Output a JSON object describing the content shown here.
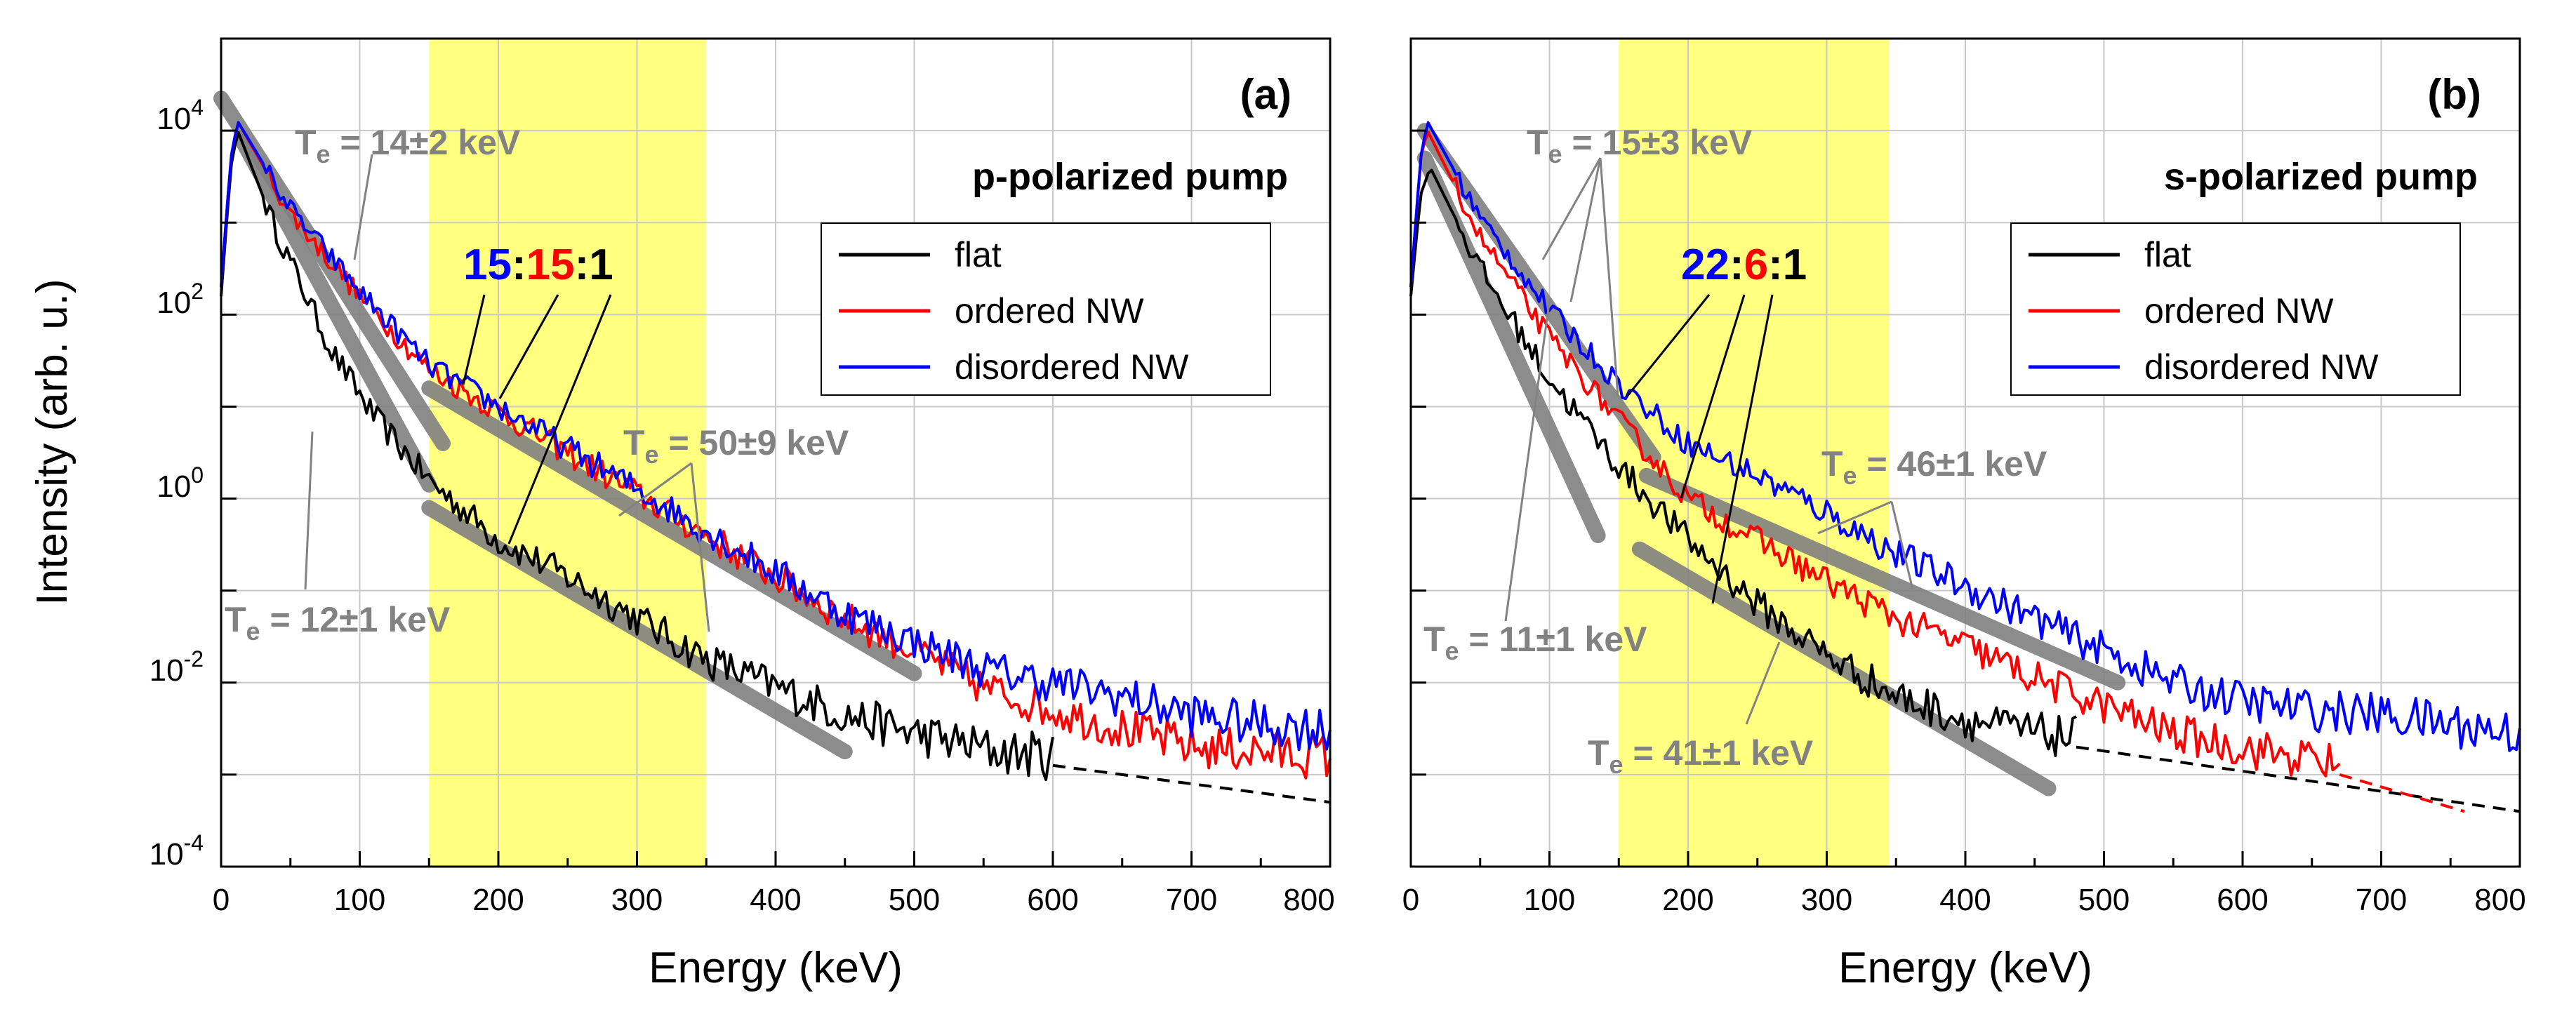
{
  "colors": {
    "flat": "#000000",
    "ordered": "#ff0000",
    "disordered": "#0000ff",
    "fit": "#808080",
    "annotation": "#828282",
    "highlight": "#ffff80"
  },
  "chart_data": [
    {
      "type": "line",
      "panel_label": "(a)",
      "title": "p-polarized pump",
      "xlabel": "Energy (keV)",
      "ylabel": "Intensity (arb. u.)",
      "xlim": [
        0,
        800
      ],
      "ylim_log10": [
        -4,
        5
      ],
      "y_scale": "log",
      "grid": true,
      "x_ticks": [
        "0",
        "100",
        "200",
        "300",
        "400",
        "500",
        "600",
        "700",
        "800"
      ],
      "y_ticks": [
        {
          "base": "10",
          "exp": "-4",
          "log": -4
        },
        {
          "base": "10",
          "exp": "-2",
          "log": -2
        },
        {
          "base": "10",
          "exp": "0",
          "log": 0
        },
        {
          "base": "10",
          "exp": "2",
          "log": 2
        },
        {
          "base": "10",
          "exp": "4",
          "log": 4
        }
      ],
      "highlight_band_keV": [
        150,
        350
      ],
      "legend": {
        "position": "upper-right",
        "entries": [
          "flat",
          "ordered NW",
          "disordered NW"
        ]
      },
      "ratio": {
        "blue": "15",
        "red": "15",
        "black": "1",
        "sep": ":"
      },
      "series": [
        {
          "name": "flat",
          "color": "#000000",
          "peak_keV": 12,
          "peak_log": 4.0,
          "noise": 0.12,
          "knots": [
            [
              0,
              2.2
            ],
            [
              7,
              3.6
            ],
            [
              12,
              4.0
            ],
            [
              40,
              2.9
            ],
            [
              80,
              1.6
            ],
            [
              110,
              0.9
            ],
            [
              150,
              0.2
            ],
            [
              200,
              -0.45
            ],
            [
              250,
              -0.85
            ],
            [
              300,
              -1.3
            ],
            [
              350,
              -1.75
            ],
            [
              400,
              -2.05
            ],
            [
              450,
              -2.35
            ],
            [
              500,
              -2.55
            ],
            [
              560,
              -2.75
            ],
            [
              600,
              -2.8
            ]
          ],
          "dashed_tail": [
            [
              600,
              -2.9
            ],
            [
              800,
              -3.3
            ]
          ]
        },
        {
          "name": "ordered NW",
          "color": "#ff0000",
          "peak_keV": 12,
          "peak_log": 4.1,
          "noise": 0.1,
          "knots": [
            [
              0,
              2.3
            ],
            [
              7,
              3.7
            ],
            [
              12,
              4.1
            ],
            [
              50,
              3.1
            ],
            [
              100,
              2.2
            ],
            [
              150,
              1.4
            ],
            [
              200,
              0.95
            ],
            [
              250,
              0.5
            ],
            [
              300,
              0.05
            ],
            [
              350,
              -0.4
            ],
            [
              400,
              -0.85
            ],
            [
              450,
              -1.3
            ],
            [
              500,
              -1.65
            ],
            [
              550,
              -2.05
            ],
            [
              600,
              -2.3
            ],
            [
              650,
              -2.5
            ],
            [
              700,
              -2.7
            ],
            [
              750,
              -2.75
            ],
            [
              800,
              -2.8
            ]
          ]
        },
        {
          "name": "disordered NW",
          "color": "#0000ff",
          "peak_keV": 12,
          "peak_log": 4.1,
          "noise": 0.1,
          "knots": [
            [
              0,
              2.3
            ],
            [
              7,
              3.7
            ],
            [
              12,
              4.1
            ],
            [
              50,
              3.15
            ],
            [
              100,
              2.25
            ],
            [
              150,
              1.45
            ],
            [
              200,
              1.0
            ],
            [
              250,
              0.55
            ],
            [
              300,
              0.1
            ],
            [
              350,
              -0.35
            ],
            [
              400,
              -0.8
            ],
            [
              450,
              -1.25
            ],
            [
              500,
              -1.55
            ],
            [
              550,
              -1.85
            ],
            [
              600,
              -2.0
            ],
            [
              650,
              -2.15
            ],
            [
              700,
              -2.35
            ],
            [
              750,
              -2.45
            ],
            [
              800,
              -2.5
            ]
          ]
        }
      ],
      "fits": [
        {
          "label_prefix": "T",
          "label_sub": "e",
          "label_value": " = 14±2 keV",
          "segment": [
            [
              0,
              4.35
            ],
            [
              160,
              0.6
            ]
          ]
        },
        {
          "label_prefix": "T",
          "label_sub": "e",
          "label_value": " = 12±1 keV",
          "segment": [
            [
              15,
              3.9
            ],
            [
              150,
              0.15
            ]
          ]
        },
        {
          "label_prefix": "T",
          "label_sub": "e",
          "label_value": " = 50±9 keV",
          "segment": [
            [
              150,
              1.2
            ],
            [
              500,
              -1.9
            ]
          ]
        },
        {
          "label_prefix": "T",
          "label_sub": "e",
          "label_value": "",
          "segment": [
            [
              150,
              -0.1
            ],
            [
              450,
              -2.75
            ]
          ]
        }
      ]
    },
    {
      "type": "line",
      "panel_label": "(b)",
      "title": "s-polarized pump",
      "xlabel": "Energy (keV)",
      "ylabel": "",
      "xlim": [
        0,
        800
      ],
      "ylim_log10": [
        -4,
        5
      ],
      "y_scale": "log",
      "grid": true,
      "x_ticks": [
        "0",
        "100",
        "200",
        "300",
        "400",
        "500",
        "600",
        "700",
        "800"
      ],
      "highlight_band_keV": [
        150,
        345
      ],
      "legend": {
        "position": "upper-right",
        "entries": [
          "flat",
          "ordered NW",
          "disordered NW"
        ]
      },
      "ratio": {
        "blue": "22",
        "red": "6",
        "black": "1",
        "sep": ":"
      },
      "series": [
        {
          "name": "flat",
          "color": "#000000",
          "peak_keV": 14,
          "peak_log": 3.6,
          "noise": 0.12,
          "knots": [
            [
              0,
              2.2
            ],
            [
              7,
              3.3
            ],
            [
              14,
              3.6
            ],
            [
              50,
              2.5
            ],
            [
              100,
              1.3
            ],
            [
              150,
              0.35
            ],
            [
              200,
              -0.45
            ],
            [
              250,
              -1.15
            ],
            [
              300,
              -1.7
            ],
            [
              350,
              -2.15
            ],
            [
              400,
              -2.4
            ],
            [
              450,
              -2.55
            ],
            [
              480,
              -2.6
            ]
          ],
          "dashed_tail": [
            [
              480,
              -2.7
            ],
            [
              800,
              -3.4
            ]
          ]
        },
        {
          "name": "ordered NW",
          "color": "#ff0000",
          "peak_keV": 12,
          "peak_log": 4.0,
          "noise": 0.1,
          "knots": [
            [
              0,
              2.3
            ],
            [
              7,
              3.7
            ],
            [
              12,
              4.0
            ],
            [
              50,
              2.85
            ],
            [
              100,
              1.75
            ],
            [
              150,
              0.85
            ],
            [
              200,
              0.0
            ],
            [
              250,
              -0.45
            ],
            [
              300,
              -0.9
            ],
            [
              350,
              -1.3
            ],
            [
              400,
              -1.6
            ],
            [
              450,
              -1.95
            ],
            [
              500,
              -2.25
            ],
            [
              550,
              -2.55
            ],
            [
              600,
              -2.7
            ],
            [
              670,
              -2.9
            ]
          ],
          "dashed_tail": [
            [
              670,
              -3.0
            ],
            [
              760,
              -3.4
            ]
          ]
        },
        {
          "name": "disordered NW",
          "color": "#0000ff",
          "peak_keV": 12,
          "peak_log": 4.1,
          "noise": 0.1,
          "knots": [
            [
              0,
              2.3
            ],
            [
              7,
              3.7
            ],
            [
              12,
              4.1
            ],
            [
              50,
              3.05
            ],
            [
              100,
              2.05
            ],
            [
              150,
              1.25
            ],
            [
              200,
              0.6
            ],
            [
              250,
              0.25
            ],
            [
              300,
              -0.15
            ],
            [
              350,
              -0.6
            ],
            [
              400,
              -0.95
            ],
            [
              450,
              -1.3
            ],
            [
              500,
              -1.65
            ],
            [
              550,
              -2.0
            ],
            [
              600,
              -2.2
            ],
            [
              650,
              -2.3
            ],
            [
              700,
              -2.35
            ],
            [
              750,
              -2.45
            ],
            [
              800,
              -2.55
            ]
          ]
        }
      ],
      "fits": [
        {
          "label_prefix": "T",
          "label_sub": "e",
          "label_value": " = 15±3 keV",
          "segment": [
            [
              10,
              4.0
            ],
            [
              175,
              0.45
            ]
          ]
        },
        {
          "label_prefix": "T",
          "label_sub": "e",
          "label_value": " = 11±1 keV",
          "segment": [
            [
              10,
              3.7
            ],
            [
              135,
              -0.4
            ]
          ]
        },
        {
          "label_prefix": "T",
          "label_sub": "e",
          "label_value": " = 46±1 keV",
          "segment": [
            [
              170,
              0.25
            ],
            [
              510,
              -2.0
            ]
          ]
        },
        {
          "label_prefix": "T",
          "label_sub": "e",
          "label_value": " = 41±1 keV",
          "segment": [
            [
              165,
              -0.55
            ],
            [
              460,
              -3.15
            ]
          ]
        }
      ]
    }
  ]
}
